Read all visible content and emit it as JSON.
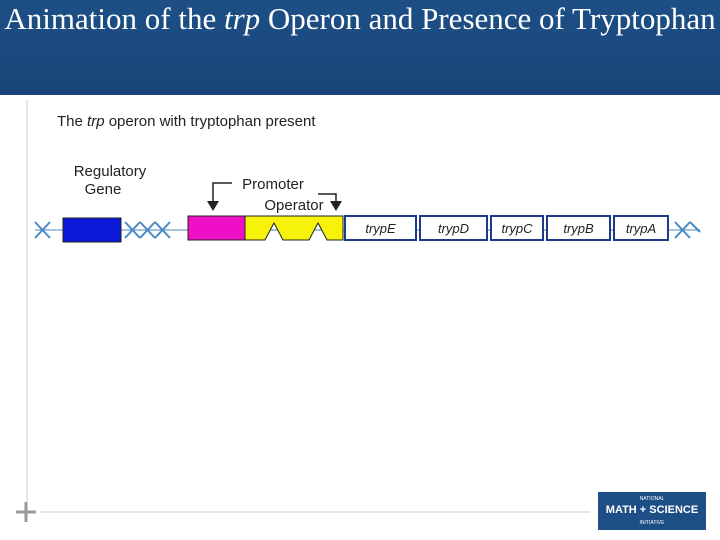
{
  "header": {
    "title_start": "Animation of the",
    "title_italic": "trp",
    "title_end": "Operon and Presence of Tryptophan"
  },
  "figure": {
    "caption_start": "The",
    "caption_italic": "trp",
    "caption_end": "operon with tryptophan present",
    "regulatory_label": [
      "Regulatory",
      "Gene"
    ],
    "promoter_label": "Promoter",
    "operator_label": "Operator",
    "genes": [
      "trypE",
      "trypD",
      "trypC",
      "trypB",
      "trypA"
    ]
  },
  "logo": {
    "line1": "NATIONAL",
    "line2": "MATH + SCIENCE",
    "line3": "INITIATIVE"
  }
}
